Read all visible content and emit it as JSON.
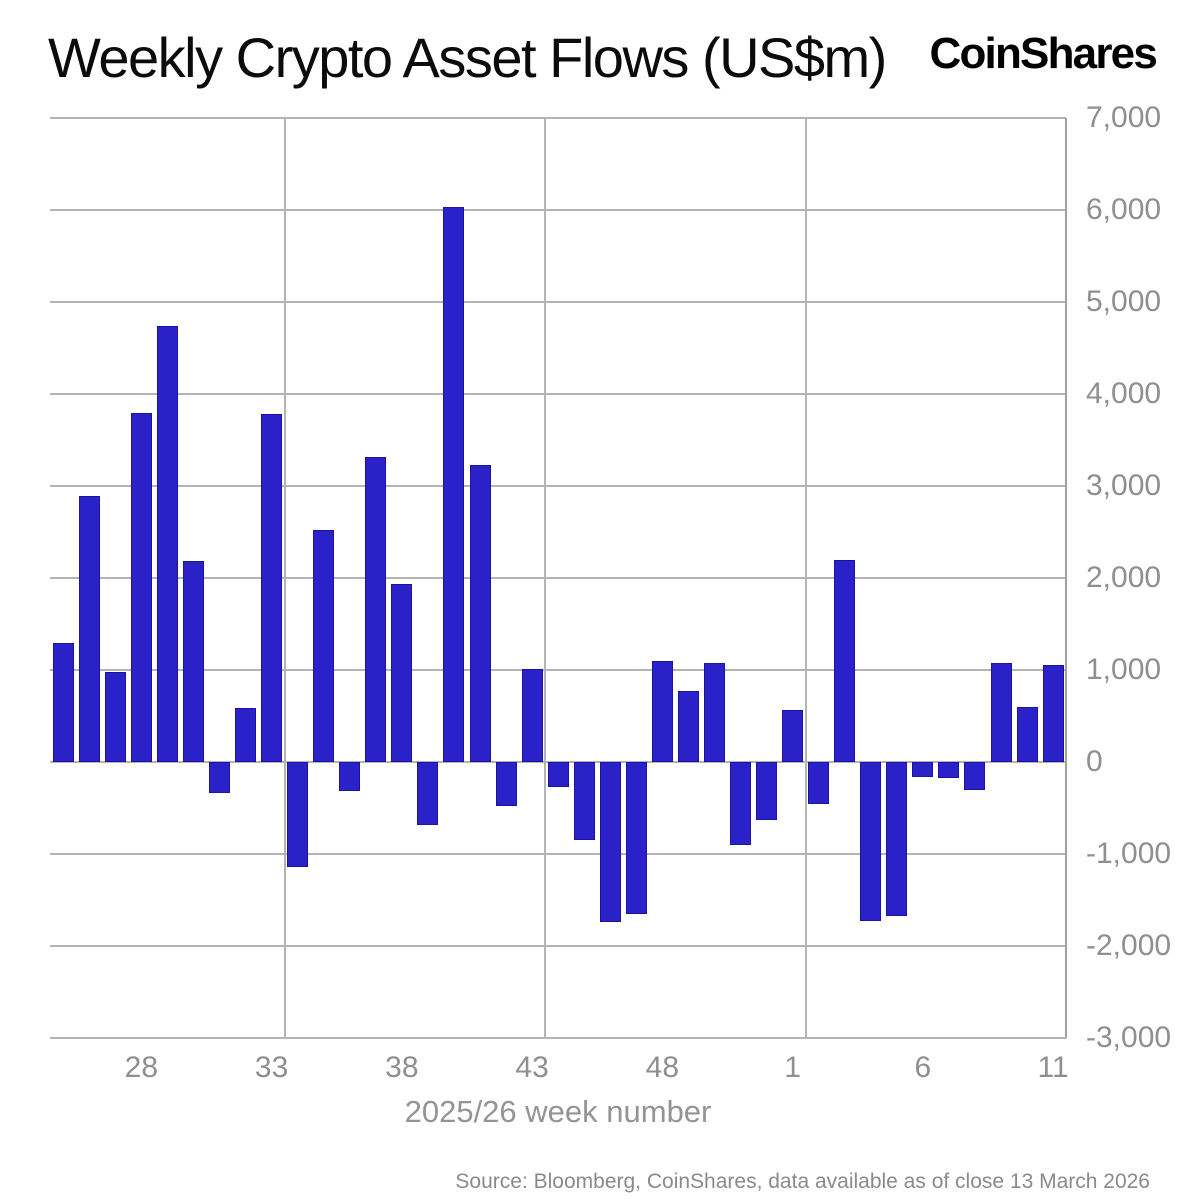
{
  "header": {
    "title": "Weekly Crypto Asset Flows (US$m)",
    "brand": "CoinShares"
  },
  "chart_data": {
    "type": "bar",
    "title": "Weekly Crypto Asset Flows (US$m)",
    "xlabel": "2025/26 week number",
    "grid": true,
    "legend_position": "none",
    "bar_color": "#2a22c8",
    "bar_edge_color": "#1b159e",
    "grid_color": "#b4b4b4",
    "axis_text_color": "#8f8f8f",
    "ylim": [
      -3000,
      7000
    ],
    "ytick_values": [
      7000,
      6000,
      5000,
      4000,
      3000,
      2000,
      1000,
      0,
      -1000,
      -2000,
      -3000
    ],
    "ytick_labels": [
      "7,000",
      "6,000",
      "5,000",
      "4,000",
      "3,000",
      "2,000",
      "1,000",
      "0",
      "-1,000",
      "-2,000",
      "-3,000"
    ],
    "categories": [
      "25",
      "26",
      "27",
      "28",
      "29",
      "30",
      "31",
      "32",
      "33",
      "34",
      "35",
      "36",
      "37",
      "38",
      "39",
      "40",
      "41",
      "42",
      "43",
      "44",
      "45",
      "46",
      "47",
      "48",
      "49",
      "50",
      "51",
      "52",
      "1",
      "2",
      "3",
      "4",
      "5",
      "6",
      "7",
      "8",
      "9",
      "10",
      "11"
    ],
    "category_years": [
      "2025",
      "2025",
      "2025",
      "2025",
      "2025",
      "2025",
      "2025",
      "2025",
      "2025",
      "2025",
      "2025",
      "2025",
      "2025",
      "2025",
      "2025",
      "2025",
      "2025",
      "2025",
      "2025",
      "2025",
      "2025",
      "2025",
      "2025",
      "2025",
      "2025",
      "2025",
      "2025",
      "2025",
      "2026",
      "2026",
      "2026",
      "2026",
      "2026",
      "2026",
      "2026",
      "2026",
      "2026",
      "2026",
      "2026"
    ],
    "values": [
      1290,
      2890,
      975,
      3790,
      4740,
      2180,
      -340,
      590,
      3780,
      -1140,
      2520,
      -320,
      3320,
      1930,
      -685,
      6030,
      3230,
      -475,
      1010,
      -270,
      -845,
      -1740,
      -1650,
      1095,
      770,
      1075,
      -905,
      -635,
      570,
      -460,
      2200,
      -1730,
      -1675,
      -165,
      -170,
      -305,
      1080,
      600,
      1050
    ],
    "xtick_indexes": [
      3,
      8,
      13,
      18,
      23,
      28,
      33,
      38
    ],
    "xtick_labels": [
      "28",
      "33",
      "38",
      "43",
      "48",
      "1",
      "6",
      "11"
    ],
    "vgrid_indexes": [
      8.5,
      18.5,
      28.5
    ]
  },
  "footer": {
    "source": "Source: Bloomberg, CoinShares, data available as of close 13 March 2026"
  }
}
